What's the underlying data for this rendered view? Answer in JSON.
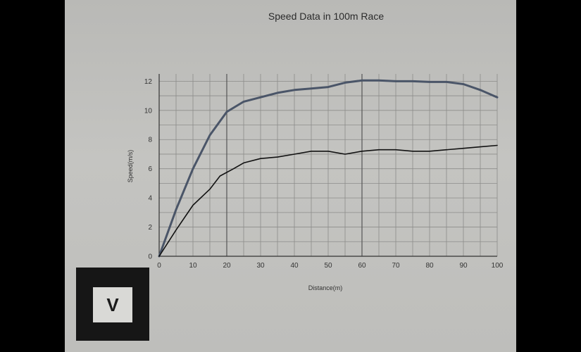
{
  "chart_data": {
    "type": "line",
    "title": "Speed Data in 100m Race",
    "xlabel": "Distance(m)",
    "ylabel": "Speed(m/s)",
    "xlim": [
      0,
      100
    ],
    "ylim": [
      0,
      12.5
    ],
    "xticks": [
      0,
      10,
      20,
      30,
      40,
      50,
      60,
      70,
      80,
      90,
      100
    ],
    "yticks": [
      0,
      2,
      4,
      6,
      8,
      10,
      12
    ],
    "grid": true,
    "series": [
      {
        "color": "#4a5568",
        "x": [
          0,
          5,
          10,
          15,
          20,
          25,
          30,
          35,
          40,
          45,
          50,
          55,
          60,
          65,
          70,
          75,
          80,
          85,
          90,
          95,
          100
        ],
        "y": [
          0,
          3.2,
          6.0,
          8.3,
          9.9,
          10.6,
          10.9,
          11.2,
          11.4,
          11.5,
          11.6,
          11.9,
          12.05,
          12.05,
          12.0,
          12.0,
          11.95,
          11.95,
          11.8,
          11.4,
          10.9
        ]
      },
      {
        "color": "#111111",
        "x": [
          0,
          5,
          10,
          15,
          18,
          22,
          25,
          30,
          35,
          40,
          45,
          50,
          55,
          60,
          65,
          70,
          75,
          80,
          85,
          90,
          95,
          100
        ],
        "y": [
          0,
          1.8,
          3.5,
          4.6,
          5.5,
          6.0,
          6.4,
          6.7,
          6.8,
          7.0,
          7.2,
          7.2,
          7.0,
          7.2,
          7.3,
          7.3,
          7.2,
          7.2,
          7.3,
          7.4,
          7.5,
          7.6
        ]
      }
    ]
  },
  "logo": {
    "letter": "V"
  }
}
